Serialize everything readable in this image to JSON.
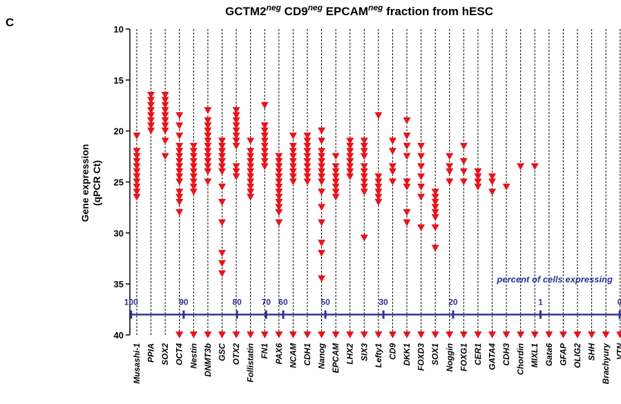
{
  "chart_data": {
    "type": "dot_strip",
    "panel": "C",
    "title_parts": [
      "GCTM2",
      "neg",
      " CD9",
      "neg",
      " EPCAM",
      "neg",
      " fraction from hESC"
    ],
    "ylabel": [
      "Gene expression",
      "(qPCR Ct)"
    ],
    "ylim": [
      10,
      40
    ],
    "y_inverted": true,
    "yticks": [
      10,
      15,
      20,
      25,
      30,
      35,
      40
    ],
    "color": "#e8141b",
    "categories": [
      "Musashi-1",
      "PPIA",
      "SOX2",
      "OCT4",
      "Nestin",
      "DNMT3b",
      "GSC",
      "OTX2",
      "Follistatin",
      "FN1",
      "PAX6",
      "NCAM",
      "CDH1",
      "Nanog",
      "EPCAM",
      "LHX2",
      "SIX3",
      "Lefty1",
      "CD9",
      "DKK1",
      "FOXD3",
      "SOX1",
      "Noggin",
      "FOXG1",
      "CER1",
      "GATA4",
      "CDH3",
      "Chordin",
      "MIXL1",
      "Gata6",
      "GFAP",
      "OLIG2",
      "SHH",
      "Brachyury",
      "VTN"
    ],
    "values": [
      [
        20.5,
        22,
        22.5,
        23,
        23.5,
        24,
        24.5,
        25,
        25.5,
        26,
        26.5
      ],
      [
        16.5,
        17,
        17.5,
        18,
        18.5,
        19,
        19.5,
        20
      ],
      [
        16.5,
        17,
        17.5,
        18,
        18.5,
        19,
        19.5,
        20,
        21,
        22.5
      ],
      [
        18.5,
        19.5,
        20.5,
        21.5,
        22,
        22.5,
        23,
        23.5,
        24,
        24.5,
        25,
        26,
        26.5,
        27,
        28,
        40
      ],
      [
        21.5,
        22,
        22.5,
        23,
        23.5,
        24,
        24.5,
        25,
        25.5,
        26,
        40
      ],
      [
        18,
        19,
        19.5,
        20,
        20.5,
        21,
        21.5,
        22,
        22.5,
        23,
        23.5,
        24,
        25,
        40
      ],
      [
        21,
        21.5,
        22,
        22.5,
        23,
        23.5,
        24,
        25.5,
        27,
        29,
        32,
        33,
        34,
        40
      ],
      [
        18,
        18.5,
        19,
        19.5,
        20,
        20.5,
        21,
        21.5,
        23.5,
        24,
        24.5,
        40
      ],
      [
        21,
        22,
        22.5,
        23,
        23.5,
        24,
        24.5,
        25,
        25.5,
        26,
        26.5,
        40
      ],
      [
        17.5,
        19.5,
        20,
        20.5,
        21,
        21.5,
        22,
        22.5,
        23,
        23.5,
        40
      ],
      [
        22.5,
        23,
        23.5,
        24,
        24.5,
        25,
        25.5,
        26,
        26.5,
        27,
        27.5,
        28,
        29,
        40
      ],
      [
        20.5,
        21.5,
        22,
        22.5,
        23,
        23.5,
        24,
        24.5,
        25,
        40
      ],
      [
        20.5,
        21,
        21.5,
        22,
        22.5,
        23,
        23.5,
        24,
        24.5,
        25,
        40
      ],
      [
        20,
        21,
        22,
        22.5,
        23,
        23.5,
        24,
        24.5,
        25,
        26,
        27.5,
        29,
        31,
        32,
        34.5,
        40
      ],
      [
        22.5,
        23.5,
        24,
        24.5,
        25,
        25.5,
        26,
        26.5,
        40
      ],
      [
        21,
        21.5,
        22,
        22.5,
        23,
        23.5,
        24,
        24.5,
        40
      ],
      [
        21,
        21.5,
        22,
        22.5,
        23.5,
        24,
        24.5,
        25,
        25.5,
        26,
        30.5,
        40
      ],
      [
        18.5,
        24.5,
        25,
        25.5,
        26,
        26.5,
        27,
        40
      ],
      [
        21,
        22,
        23.5,
        24,
        25,
        40
      ],
      [
        19,
        20.5,
        21.5,
        22.5,
        25,
        25.5,
        28,
        29,
        40
      ],
      [
        21.5,
        22.5,
        23.5,
        24.5,
        25.5,
        26.5,
        29.5,
        40
      ],
      [
        26,
        26.5,
        27,
        27.5,
        28,
        28.5,
        29.5,
        31.5,
        40
      ],
      [
        22.5,
        23.5,
        24,
        25,
        40
      ],
      [
        21.5,
        23,
        24,
        25,
        40
      ],
      [
        24,
        24.5,
        25,
        25.5,
        40
      ],
      [
        24.5,
        25,
        26,
        40
      ],
      [
        25.5,
        40
      ],
      [
        23.5,
        40
      ],
      [
        23.5,
        40
      ],
      [
        40
      ],
      [
        40
      ],
      [
        40
      ],
      [
        40
      ],
      [
        40
      ],
      [
        40
      ]
    ],
    "percent_scale": {
      "label": "percent of cells expressing",
      "color": "#2e3192",
      "level": 38,
      "ticks": [
        {
          "value": 100,
          "at": -0.4
        },
        {
          "value": 90,
          "at": 3.3
        },
        {
          "value": 80,
          "at": 7.05
        },
        {
          "value": 70,
          "at": 9.1
        },
        {
          "value": 60,
          "at": 10.3
        },
        {
          "value": 50,
          "at": 13.27
        },
        {
          "value": 30,
          "at": 17.35
        },
        {
          "value": 20,
          "at": 22.25
        },
        {
          "value": 1,
          "at": 28.4
        },
        {
          "value": 0,
          "at": 33.97
        }
      ]
    }
  }
}
